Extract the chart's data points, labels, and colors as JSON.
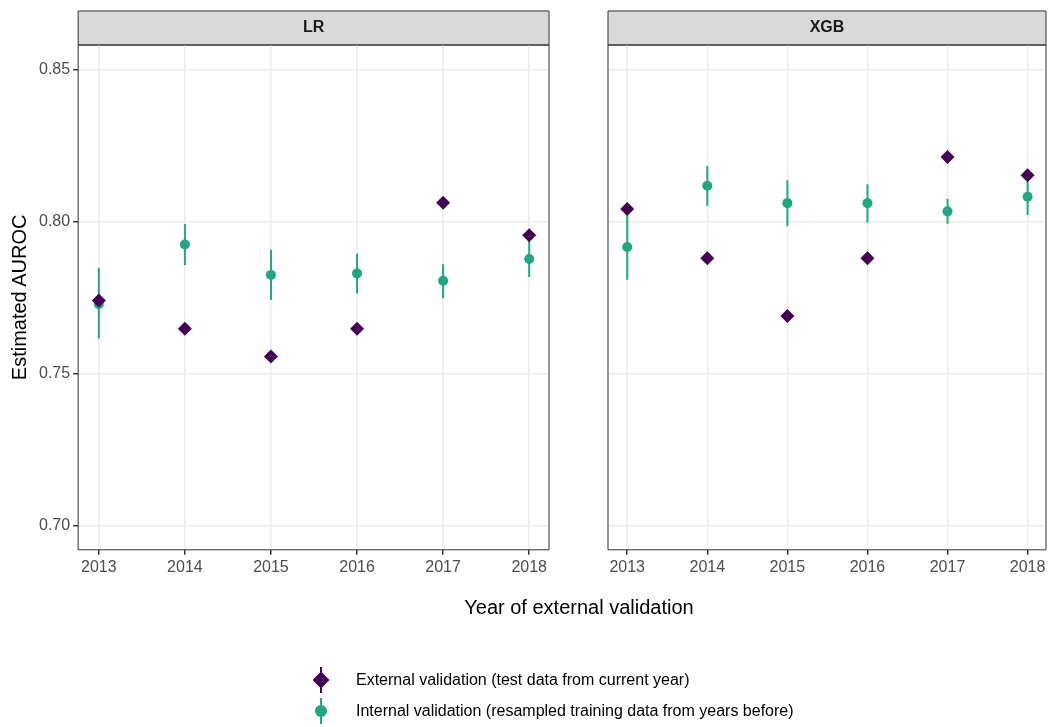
{
  "chart_data": [
    {
      "type": "scatter",
      "title": "LR",
      "xlabel": "Year of external validation",
      "ylabel": "Estimated AUROC",
      "x": [
        2013,
        2014,
        2015,
        2016,
        2017,
        2018
      ],
      "xlim": [
        2012.76,
        2018.23
      ],
      "xticks": [
        2013,
        2014,
        2015,
        2016,
        2017,
        2018
      ],
      "ylim": [
        0.692,
        0.858
      ],
      "yticks": [
        {
          "value": 0.7,
          "label": "0.70"
        },
        0.75,
        {
          "value": 0.8,
          "label": "0.80"
        },
        0.85
      ],
      "grid": true,
      "legend": "bottom",
      "series": [
        {
          "name": "External validation (test data from current year)",
          "color": "#440154",
          "marker": "diamond",
          "values": [
            0.774,
            0.7647,
            0.7556,
            0.7647,
            0.8061,
            0.7954
          ]
        },
        {
          "name": "Internal validation (resampled training data from years before)",
          "color": "#21a685",
          "marker": "circle",
          "values": [
            0.7728,
            0.7924,
            0.7824,
            0.7829,
            0.7805,
            0.7876
          ],
          "errors": [
            [
              0.7615,
              0.7847
            ],
            [
              0.7856,
              0.7991
            ],
            [
              0.7742,
              0.7907
            ],
            [
              0.7763,
              0.7894
            ],
            [
              0.7747,
              0.7859
            ],
            [
              0.7817,
              0.7935
            ]
          ]
        }
      ]
    },
    {
      "type": "scatter",
      "title": "XGB",
      "x": [
        2013,
        2014,
        2015,
        2016,
        2017,
        2018
      ],
      "xlim": [
        2012.76,
        2018.23
      ],
      "xticks": [
        2013,
        2014,
        2015,
        2016,
        2017,
        2018
      ],
      "ylim": [
        0.692,
        0.858
      ],
      "yticks": [
        0.7,
        0.75,
        0.8,
        0.85
      ],
      "grid": true,
      "tick_labels": "x",
      "series": [
        {
          "color": "#440154",
          "marker": "diamond",
          "values": [
            0.8041,
            0.7879,
            0.7689,
            0.7879,
            0.8212,
            0.8152
          ]
        },
        {
          "color": "#21a685",
          "marker": "circle",
          "values": [
            0.7916,
            0.8117,
            0.806,
            0.806,
            0.8033,
            0.8081
          ],
          "errors": [
            [
              0.7808,
              0.8024
            ],
            [
              0.8051,
              0.8182
            ],
            [
              0.7984,
              0.8135
            ],
            [
              0.7996,
              0.8122
            ],
            [
              0.7992,
              0.8074
            ],
            [
              0.8021,
              0.8141
            ]
          ]
        }
      ]
    }
  ]
}
